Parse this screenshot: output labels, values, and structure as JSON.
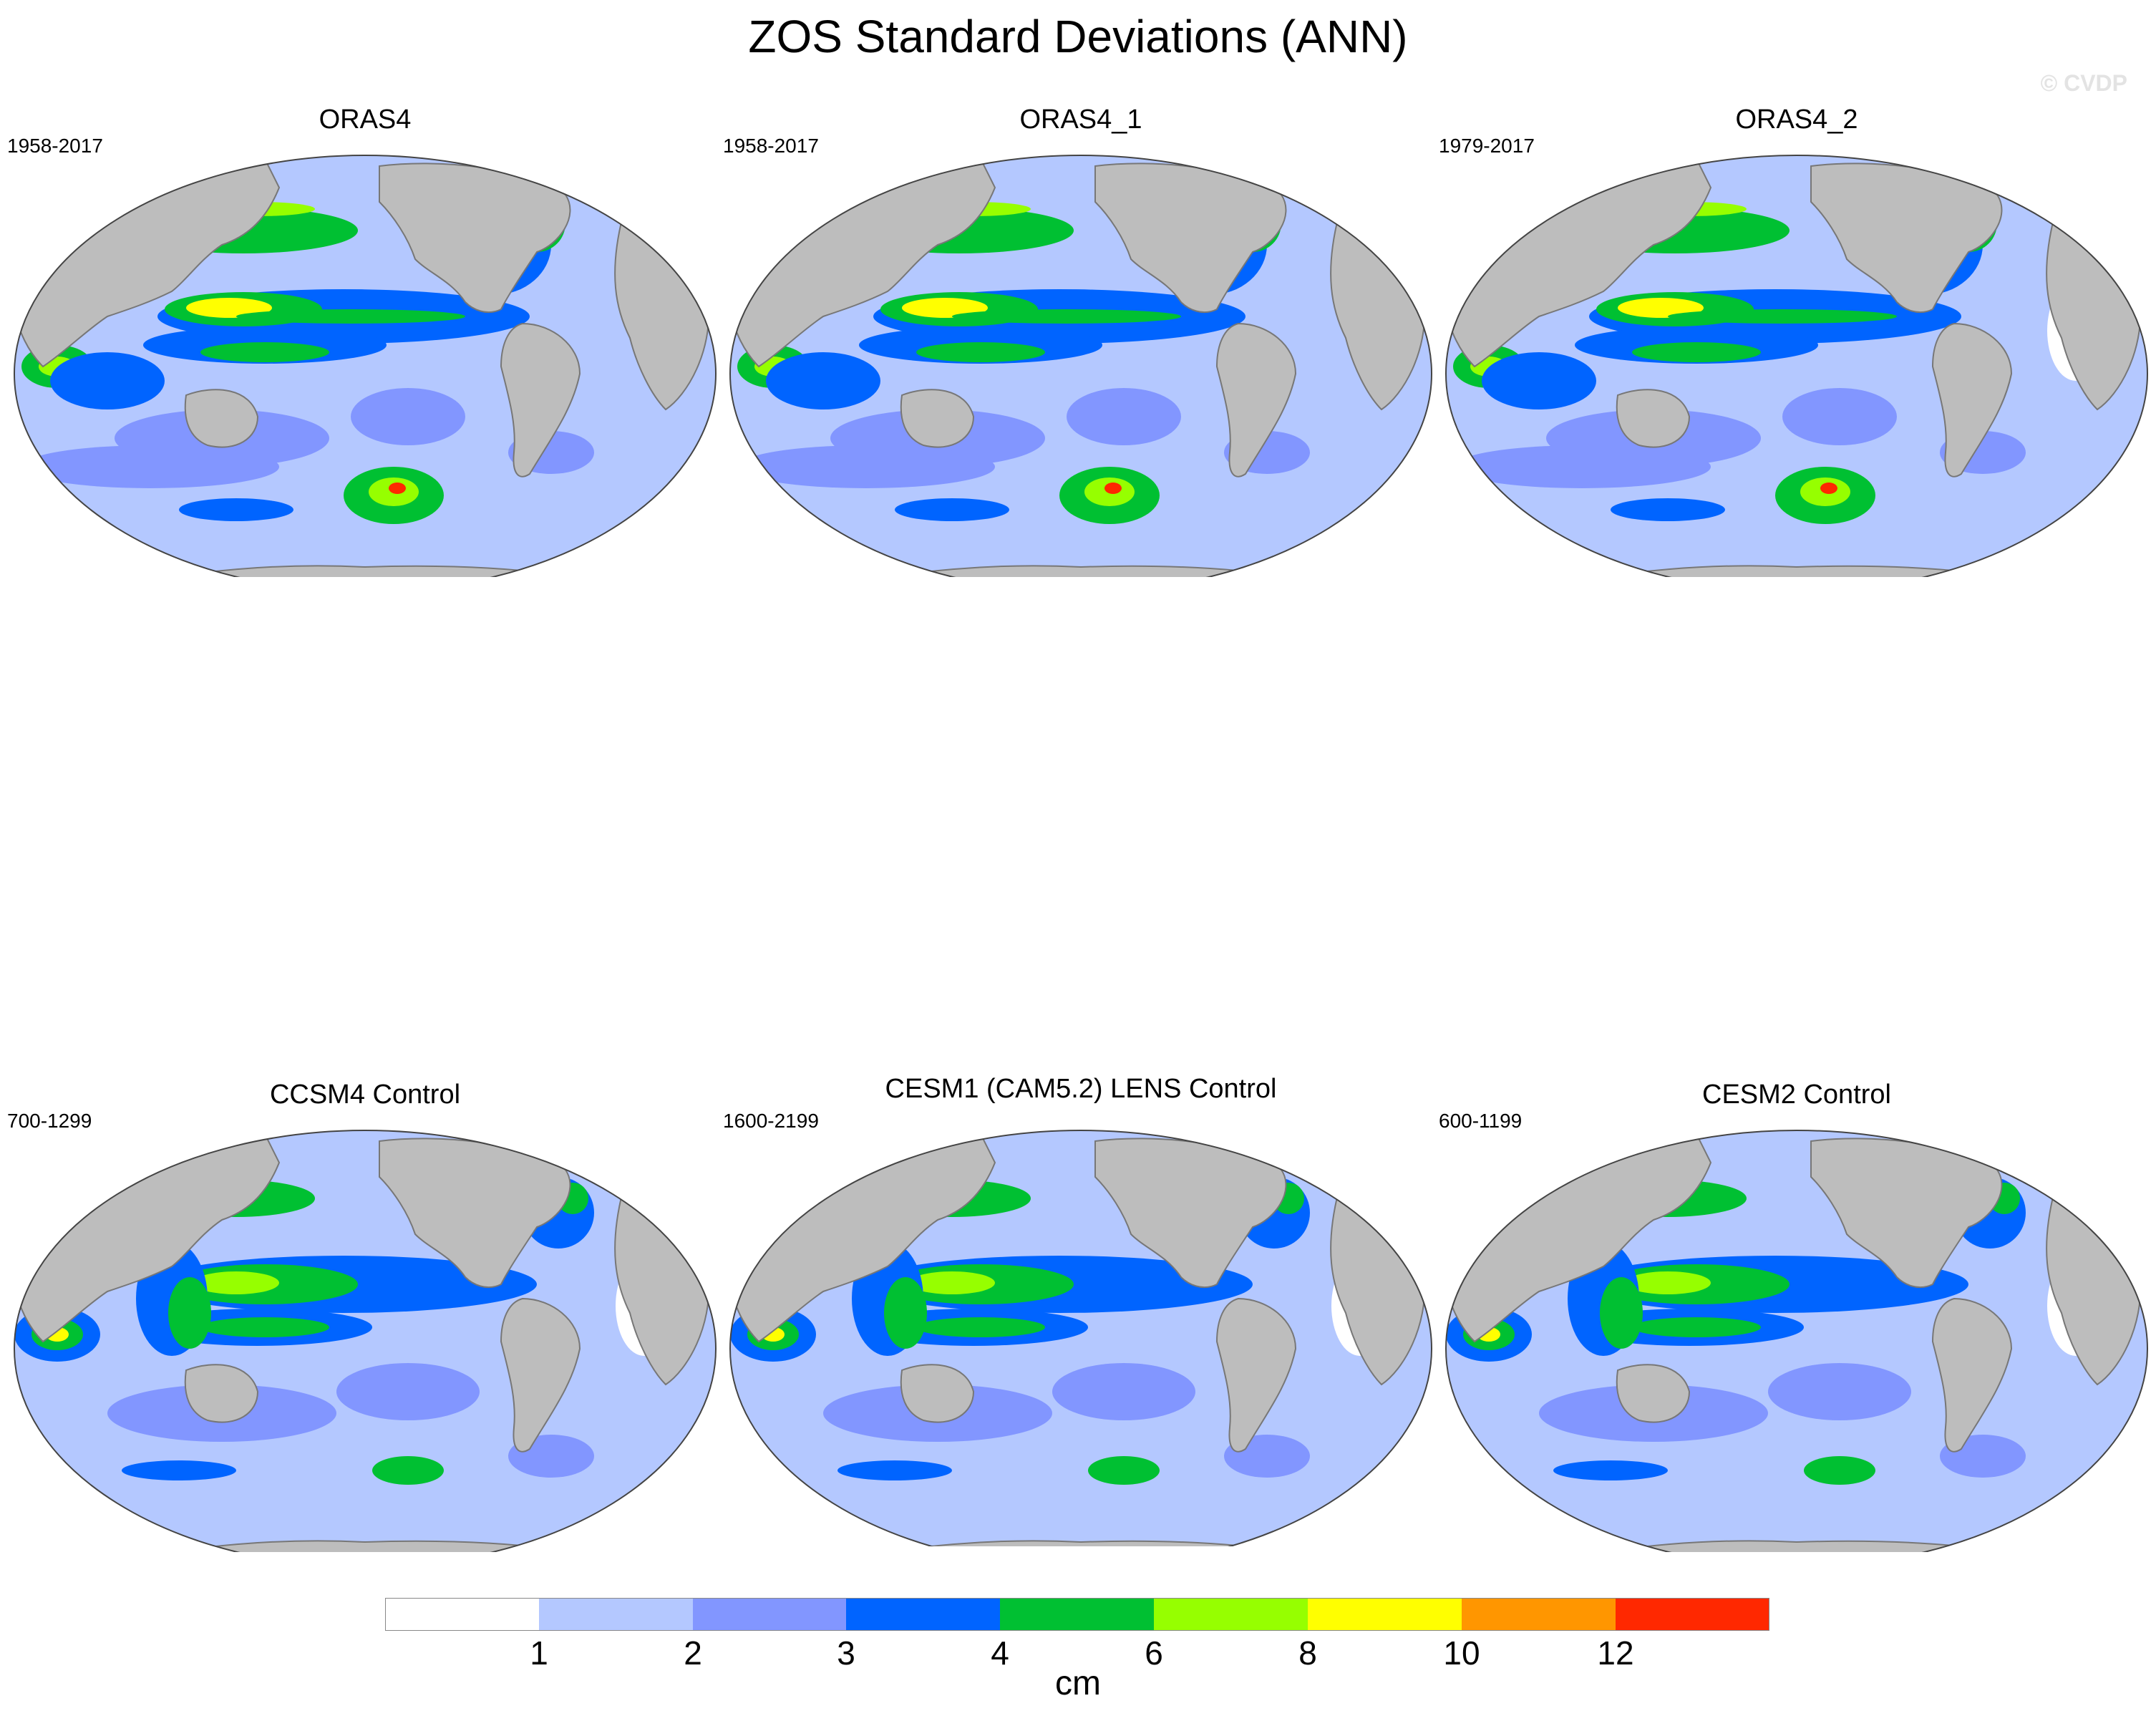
{
  "title": "ZOS Standard Deviations (ANN)",
  "credit": "© CVDP",
  "panels": [
    {
      "name": "ORAS4",
      "years": "1958-2017"
    },
    {
      "name": "ORAS4_1",
      "years": "1958-2017"
    },
    {
      "name": "ORAS4_2",
      "years": "1979-2017"
    },
    {
      "name": "CCSM4 Control",
      "years": "700-1299"
    },
    {
      "name": "CESM1 (CAM5.2) LENS Control",
      "years": "1600-2199"
    },
    {
      "name": "CESM2 Control",
      "years": "600-1199"
    }
  ],
  "colorbar": {
    "units": "cm",
    "labels": [
      "1",
      "2",
      "3",
      "4",
      "6",
      "8",
      "10",
      "12"
    ],
    "colors": [
      "#ffffff",
      "#b4c8ff",
      "#8296ff",
      "#0064ff",
      "#00c032",
      "#96ff00",
      "#ffff00",
      "#ff9600",
      "#ff2800"
    ]
  },
  "map_colors": {
    "land": "#bdbdbd",
    "coast": "#777777"
  }
}
